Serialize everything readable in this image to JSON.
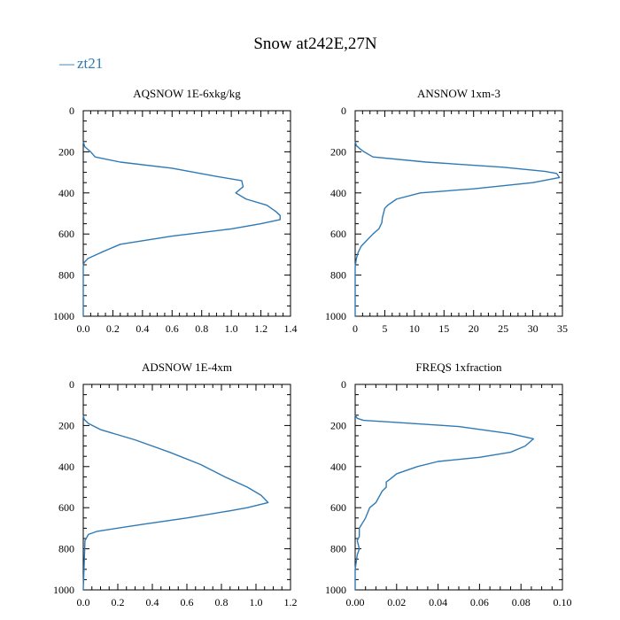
{
  "colors": {
    "series": "#2e7ab6",
    "axis": "#000000",
    "background": "#ffffff"
  },
  "legend": {
    "label": "zt21",
    "symbol": "—"
  },
  "chart_data": [
    {
      "type": "line",
      "title": "AQSNOW  1E-6xkg/kg",
      "series_name": "zt21",
      "xlim": [
        0,
        1.4
      ],
      "ylim": [
        1000,
        0
      ],
      "x_ticks": [
        0.0,
        0.2,
        0.4,
        0.6,
        0.8,
        1.0,
        1.2,
        1.4
      ],
      "x_tick_labels": [
        "0.0",
        "0.2",
        "0.4",
        "0.6",
        "0.8",
        "1.0",
        "1.2",
        "1.4"
      ],
      "y_ticks": [
        0,
        200,
        400,
        600,
        800,
        1000
      ],
      "y_tick_labels": [
        "0",
        "200",
        "400",
        "600",
        "800",
        "1000"
      ],
      "points": [
        [
          0,
          150
        ],
        [
          0.01,
          175
        ],
        [
          0.05,
          200
        ],
        [
          0.08,
          225
        ],
        [
          0.25,
          250
        ],
        [
          0.6,
          280
        ],
        [
          0.9,
          320
        ],
        [
          1.07,
          340
        ],
        [
          1.08,
          370
        ],
        [
          1.03,
          400
        ],
        [
          1.1,
          430
        ],
        [
          1.24,
          460
        ],
        [
          1.3,
          490
        ],
        [
          1.33,
          510
        ],
        [
          1.33,
          530
        ],
        [
          1.2,
          550
        ],
        [
          1.0,
          575
        ],
        [
          0.6,
          610
        ],
        [
          0.25,
          650
        ],
        [
          0.12,
          690
        ],
        [
          0.03,
          720
        ],
        [
          0.005,
          740
        ],
        [
          0,
          760
        ],
        [
          0,
          1000
        ]
      ]
    },
    {
      "type": "line",
      "title": "ANSNOW  1xm-3",
      "series_name": "zt21",
      "xlim": [
        0,
        35
      ],
      "ylim": [
        1000,
        0
      ],
      "x_ticks": [
        0,
        5,
        10,
        15,
        20,
        25,
        30,
        35
      ],
      "x_tick_labels": [
        "0",
        "5",
        "10",
        "15",
        "20",
        "25",
        "30",
        "35"
      ],
      "y_ticks": [
        0,
        200,
        400,
        600,
        800,
        1000
      ],
      "y_tick_labels": [
        "0",
        "200",
        "400",
        "600",
        "800",
        "1000"
      ],
      "points": [
        [
          0,
          150
        ],
        [
          0.2,
          170
        ],
        [
          0.8,
          185
        ],
        [
          1.5,
          200
        ],
        [
          3,
          225
        ],
        [
          12,
          250
        ],
        [
          25,
          275
        ],
        [
          32,
          295
        ],
        [
          34,
          305
        ],
        [
          34.5,
          325
        ],
        [
          30,
          350
        ],
        [
          20,
          380
        ],
        [
          11,
          400
        ],
        [
          7,
          430
        ],
        [
          5.5,
          460
        ],
        [
          5,
          475
        ],
        [
          4.6,
          520
        ],
        [
          4.5,
          545
        ],
        [
          4,
          575
        ],
        [
          3,
          600
        ],
        [
          2,
          630
        ],
        [
          1,
          660
        ],
        [
          0.5,
          690
        ],
        [
          0.2,
          720
        ],
        [
          0,
          760
        ],
        [
          0,
          1000
        ]
      ]
    },
    {
      "type": "line",
      "title": "ADSNOW  1E-4xm",
      "series_name": "zt21",
      "xlim": [
        0,
        1.2
      ],
      "ylim": [
        1000,
        0
      ],
      "x_ticks": [
        0.0,
        0.2,
        0.4,
        0.6,
        0.8,
        1.0,
        1.2
      ],
      "x_tick_labels": [
        "0.0",
        "0.2",
        "0.4",
        "0.6",
        "0.8",
        "1.0",
        "1.2"
      ],
      "y_ticks": [
        0,
        200,
        400,
        600,
        800,
        1000
      ],
      "y_tick_labels": [
        "0",
        "200",
        "400",
        "600",
        "800",
        "1000"
      ],
      "points": [
        [
          0,
          150
        ],
        [
          0.005,
          170
        ],
        [
          0.03,
          190
        ],
        [
          0.1,
          220
        ],
        [
          0.3,
          270
        ],
        [
          0.5,
          330
        ],
        [
          0.68,
          390
        ],
        [
          0.82,
          450
        ],
        [
          0.95,
          500
        ],
        [
          1.03,
          540
        ],
        [
          1.07,
          575
        ],
        [
          0.95,
          600
        ],
        [
          0.85,
          615
        ],
        [
          0.6,
          650
        ],
        [
          0.35,
          680
        ],
        [
          0.08,
          715
        ],
        [
          0.03,
          730
        ],
        [
          0.01,
          760
        ],
        [
          0,
          1000
        ]
      ]
    },
    {
      "type": "line",
      "title": "FREQS  1xfraction",
      "series_name": "zt21",
      "xlim": [
        0,
        0.1
      ],
      "ylim": [
        1000,
        0
      ],
      "x_ticks": [
        0.0,
        0.02,
        0.04,
        0.06,
        0.08,
        0.1
      ],
      "x_tick_labels": [
        "0.00",
        "0.02",
        "0.04",
        "0.06",
        "0.08",
        "0.10"
      ],
      "y_ticks": [
        0,
        200,
        400,
        600,
        800,
        1000
      ],
      "y_tick_labels": [
        "0",
        "200",
        "400",
        "600",
        "800",
        "1000"
      ],
      "points": [
        [
          0,
          150
        ],
        [
          0.001,
          165
        ],
        [
          0.004,
          175
        ],
        [
          0.02,
          185
        ],
        [
          0.05,
          205
        ],
        [
          0.075,
          240
        ],
        [
          0.086,
          265
        ],
        [
          0.082,
          300
        ],
        [
          0.075,
          330
        ],
        [
          0.06,
          355
        ],
        [
          0.04,
          375
        ],
        [
          0.03,
          400
        ],
        [
          0.02,
          435
        ],
        [
          0.017,
          460
        ],
        [
          0.015,
          475
        ],
        [
          0.015,
          500
        ],
        [
          0.013,
          520
        ],
        [
          0.01,
          575
        ],
        [
          0.007,
          600
        ],
        [
          0.005,
          650
        ],
        [
          0.002,
          700
        ],
        [
          0.002,
          740
        ],
        [
          0.001,
          760
        ],
        [
          0.002,
          800
        ],
        [
          0.001,
          830
        ],
        [
          0,
          900
        ],
        [
          0,
          1000
        ]
      ]
    }
  ],
  "figure": {
    "title": "Snow at242E,27N"
  }
}
